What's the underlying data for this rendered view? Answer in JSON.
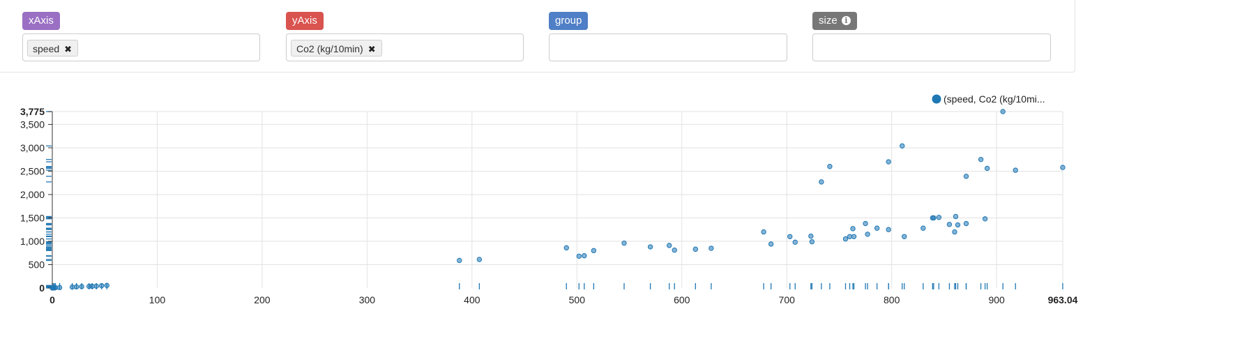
{
  "controls": {
    "xaxis": {
      "label": "xAxis",
      "color": "#9a6fc4",
      "chip": "speed"
    },
    "yaxis": {
      "label": "yAxis",
      "color": "#d9534f",
      "chip": "Co2 (kg/10min)"
    },
    "group": {
      "label": "group",
      "color": "#4f7fc6"
    },
    "size": {
      "label": "size",
      "color": "#777777",
      "icon": "info-circle-icon"
    }
  },
  "chart_data": {
    "type": "scatter",
    "title": "",
    "xlabel": "",
    "ylabel": "",
    "xlim": [
      0,
      963.04
    ],
    "ylim": [
      0,
      3775
    ],
    "x_ticks": [
      0,
      100,
      200,
      300,
      400,
      500,
      600,
      700,
      800,
      900
    ],
    "x_tick_labels": [
      "0",
      "100",
      "200",
      "300",
      "400",
      "500",
      "600",
      "700",
      "800",
      "900"
    ],
    "x_max_label": "963.04",
    "y_ticks": [
      0,
      500,
      1000,
      1500,
      2000,
      2500,
      3000,
      3500
    ],
    "y_tick_labels": [
      "0",
      "500",
      "1,000",
      "1,500",
      "2,000",
      "2,500",
      "3,000",
      "3,500"
    ],
    "y_max_label": "3,775",
    "grid": true,
    "rug": true,
    "legend_position": "top-right",
    "marker_color": "#1f77b4",
    "series": [
      {
        "name": "(speed, Co2 (kg/10mi...",
        "points": [
          [
            0,
            0
          ],
          [
            1,
            5
          ],
          [
            2,
            2
          ],
          [
            3,
            8
          ],
          [
            7,
            10
          ],
          [
            19,
            20
          ],
          [
            23,
            25
          ],
          [
            28,
            30
          ],
          [
            35,
            35
          ],
          [
            38,
            38
          ],
          [
            42,
            40
          ],
          [
            47,
            50
          ],
          [
            52,
            55
          ],
          [
            388,
            590
          ],
          [
            407,
            610
          ],
          [
            490,
            860
          ],
          [
            502,
            680
          ],
          [
            507,
            690
          ],
          [
            516,
            800
          ],
          [
            545,
            960
          ],
          [
            570,
            880
          ],
          [
            588,
            910
          ],
          [
            593,
            810
          ],
          [
            613,
            830
          ],
          [
            628,
            850
          ],
          [
            678,
            1200
          ],
          [
            685,
            940
          ],
          [
            703,
            1100
          ],
          [
            708,
            980
          ],
          [
            723,
            1110
          ],
          [
            724,
            990
          ],
          [
            733,
            2270
          ],
          [
            741,
            2600
          ],
          [
            756,
            1050
          ],
          [
            760,
            1100
          ],
          [
            763,
            1270
          ],
          [
            764,
            1100
          ],
          [
            775,
            1380
          ],
          [
            777,
            1150
          ],
          [
            786,
            1280
          ],
          [
            797,
            2700
          ],
          [
            797,
            1250
          ],
          [
            810,
            3040
          ],
          [
            812,
            1100
          ],
          [
            830,
            1280
          ],
          [
            839,
            1500
          ],
          [
            840,
            1500
          ],
          [
            845,
            1510
          ],
          [
            855,
            1360
          ],
          [
            860,
            1200
          ],
          [
            861,
            1530
          ],
          [
            863,
            1350
          ],
          [
            871,
            2390
          ],
          [
            871,
            1380
          ],
          [
            885,
            2750
          ],
          [
            889,
            1480
          ],
          [
            891,
            2560
          ],
          [
            906,
            3775
          ],
          [
            918,
            2520
          ],
          [
            963,
            2580
          ]
        ]
      }
    ]
  }
}
